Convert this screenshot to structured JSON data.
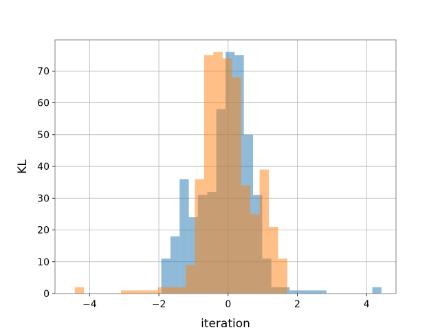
{
  "chart_data": {
    "type": "histogram",
    "xlabel": "iteration",
    "ylabel": "KL",
    "xlim": [
      -5.0,
      4.85
    ],
    "ylim": [
      0,
      79.8
    ],
    "grid": true,
    "x_ticks": [
      -4,
      -2,
      0,
      2,
      4
    ],
    "y_ticks": [
      0,
      10,
      20,
      30,
      40,
      50,
      60,
      70
    ],
    "series": [
      {
        "color": "#1f77b4",
        "opacity": 0.5,
        "bin_edges": [
          -1.93,
          -1.665,
          -1.4,
          -1.135,
          -0.87,
          -0.605,
          -0.34,
          -0.075,
          0.19,
          0.455,
          0.72,
          0.985,
          1.25,
          1.515,
          1.78,
          2.045,
          2.31,
          2.575,
          2.84,
          3.105,
          3.37,
          3.635,
          3.9,
          4.165,
          4.43
        ],
        "counts": [
          11,
          18,
          36,
          24,
          31,
          32,
          58,
          76,
          75,
          50,
          31,
          11,
          2,
          2,
          1,
          1,
          1,
          1,
          0,
          0,
          0,
          0,
          0,
          2
        ]
      },
      {
        "color": "#ff7f0e",
        "opacity": 0.5,
        "bin_edges": [
          -4.43,
          -4.163,
          -3.896,
          -3.629,
          -3.362,
          -3.095,
          -2.828,
          -2.561,
          -2.294,
          -2.027,
          -1.76,
          -1.493,
          -1.226,
          -0.959,
          -0.692,
          -0.425,
          -0.158,
          0.109,
          0.376,
          0.643,
          0.91,
          1.177,
          1.444,
          1.711,
          1.978
        ],
        "counts": [
          2,
          0,
          0,
          0,
          0,
          1,
          1,
          1,
          1,
          2,
          2,
          2,
          9,
          36,
          75,
          76,
          74,
          68,
          34,
          25,
          39,
          21,
          11,
          0
        ]
      }
    ]
  }
}
